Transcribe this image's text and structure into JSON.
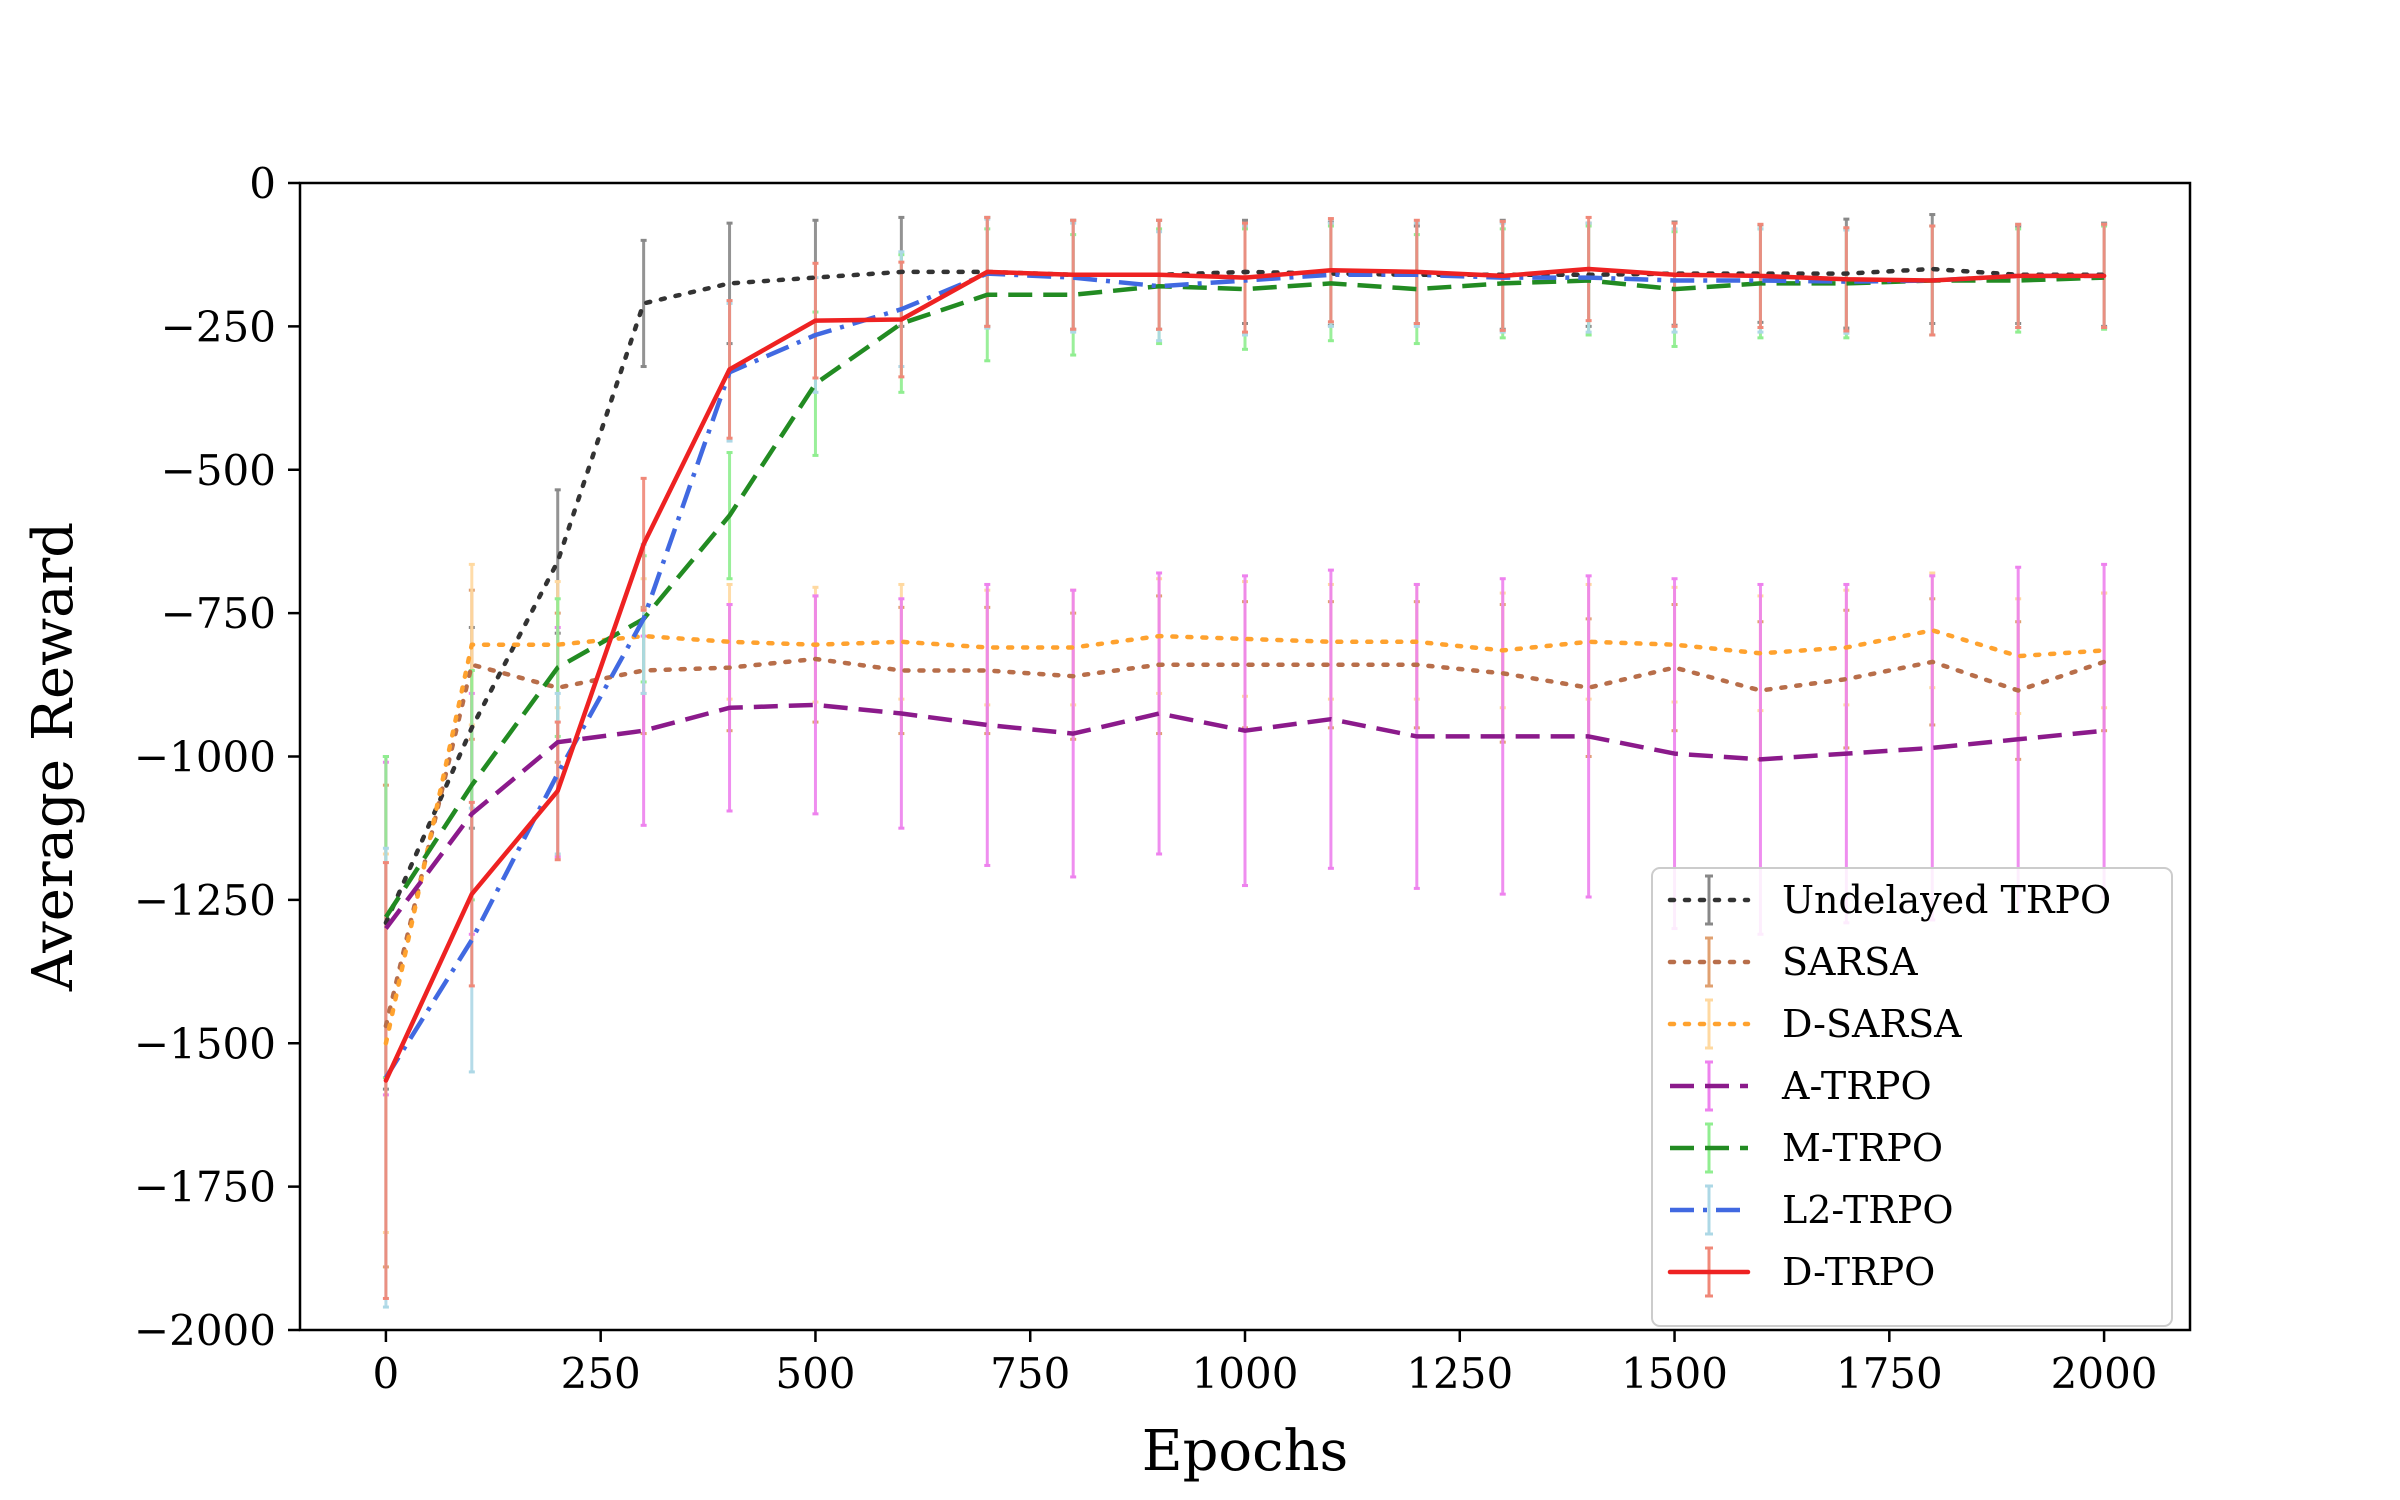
{
  "chart_data": {
    "type": "line",
    "xlabel": "Epochs",
    "ylabel": "Average Reward",
    "xlim": [
      -100,
      2100
    ],
    "ylim": [
      -2000,
      0
    ],
    "xticks": [
      0,
      250,
      500,
      750,
      1000,
      1250,
      1500,
      1750,
      2000
    ],
    "xtick_labels": [
      "0",
      "250",
      "500",
      "750",
      "1000",
      "1250",
      "1500",
      "1750",
      "2000"
    ],
    "yticks": [
      0,
      -250,
      -500,
      -750,
      -1000,
      -1250,
      -1500,
      -1750,
      -2000
    ],
    "ytick_labels": [
      "0",
      "−250",
      "−500",
      "−750",
      "−1000",
      "−1250",
      "−1500",
      "−1750",
      "−2000"
    ],
    "grid": false,
    "legend_position": "lower-right",
    "x": [
      0,
      100,
      200,
      300,
      400,
      500,
      600,
      700,
      800,
      900,
      1000,
      1100,
      1200,
      1300,
      1400,
      1500,
      1600,
      1700,
      1800,
      1900,
      2000
    ],
    "series": [
      {
        "name": "Undelayed TRPO",
        "color": "#333333",
        "err_color": "#888888",
        "dash": "dot",
        "values": [
          -1290,
          -950,
          -660,
          -210,
          -175,
          -165,
          -155,
          -155,
          -160,
          -160,
          -155,
          -158,
          -160,
          -160,
          -160,
          -158,
          -158,
          -158,
          -150,
          -160,
          -160
        ],
        "err": [
          290,
          175,
          125,
          110,
          105,
          100,
          95,
          95,
          95,
          95,
          90,
          90,
          85,
          95,
          90,
          90,
          85,
          95,
          95,
          85,
          90
        ]
      },
      {
        "name": "SARSA",
        "color": "#b86e4a",
        "err_color": "#e0a070",
        "dash": "dot",
        "values": [
          -1470,
          -840,
          -880,
          -850,
          -845,
          -830,
          -850,
          -850,
          -860,
          -840,
          -840,
          -840,
          -840,
          -855,
          -880,
          -845,
          -885,
          -865,
          -835,
          -885,
          -835
        ],
        "err": [
          420,
          130,
          130,
          110,
          110,
          110,
          110,
          110,
          110,
          120,
          110,
          110,
          110,
          120,
          120,
          110,
          120,
          120,
          110,
          120,
          120
        ]
      },
      {
        "name": "D-SARSA",
        "color": "#ffa22e",
        "err_color": "#ffd9a0",
        "dash": "dot",
        "values": [
          -1500,
          -805,
          -805,
          -790,
          -800,
          -805,
          -800,
          -810,
          -810,
          -790,
          -795,
          -800,
          -800,
          -815,
          -800,
          -805,
          -820,
          -810,
          -780,
          -825,
          -815
        ],
        "err": [
          330,
          140,
          110,
          100,
          100,
          100,
          100,
          100,
          100,
          100,
          100,
          100,
          100,
          100,
          100,
          100,
          100,
          100,
          100,
          100,
          100
        ]
      },
      {
        "name": "A-TRPO",
        "color": "#8b1a8b",
        "err_color": "#ee82ee",
        "dash": "dash",
        "values": [
          -1300,
          -1100,
          -975,
          -955,
          -915,
          -910,
          -925,
          -945,
          -960,
          -925,
          -955,
          -935,
          -965,
          -965,
          -965,
          -995,
          -1005,
          -995,
          -985,
          -970,
          -955
        ],
        "err": [
          290,
          210,
          200,
          165,
          180,
          190,
          200,
          245,
          250,
          245,
          270,
          260,
          265,
          275,
          280,
          305,
          305,
          295,
          300,
          300,
          290
        ]
      },
      {
        "name": "M-TRPO",
        "color": "#228b22",
        "err_color": "#90ee90",
        "dash": "dash",
        "values": [
          -1280,
          -1050,
          -845,
          -760,
          -580,
          -350,
          -245,
          -195,
          -195,
          -180,
          -185,
          -175,
          -185,
          -175,
          -170,
          -185,
          -175,
          -175,
          -170,
          -170,
          -165
        ],
        "err": [
          280,
          200,
          120,
          110,
          110,
          125,
          120,
          115,
          105,
          100,
          105,
          100,
          95,
          95,
          95,
          100,
          95,
          95,
          95,
          90,
          90
        ]
      },
      {
        "name": "L2-TRPO",
        "color": "#4169e1",
        "err_color": "#add8e6",
        "dash": "dashdot",
        "values": [
          -1560,
          -1320,
          -1030,
          -760,
          -330,
          -265,
          -220,
          -158,
          -165,
          -180,
          -170,
          -160,
          -160,
          -165,
          -165,
          -170,
          -170,
          -172,
          -170,
          -162,
          -162
        ],
        "err": [
          400,
          230,
          140,
          130,
          120,
          100,
          100,
          95,
          95,
          95,
          95,
          90,
          90,
          95,
          95,
          90,
          90,
          90,
          95,
          90,
          90
        ]
      },
      {
        "name": "D-TRPO",
        "color": "#ee2222",
        "err_color": "#f08878",
        "dash": "solid",
        "values": [
          -1565,
          -1240,
          -1060,
          -630,
          -325,
          -240,
          -238,
          -155,
          -160,
          -160,
          -165,
          -152,
          -155,
          -162,
          -150,
          -160,
          -162,
          -168,
          -170,
          -162,
          -162
        ],
        "err": [
          380,
          160,
          120,
          115,
          120,
          100,
          100,
          95,
          95,
          95,
          95,
          90,
          90,
          95,
          90,
          90,
          90,
          90,
          95,
          90,
          90
        ]
      }
    ]
  }
}
